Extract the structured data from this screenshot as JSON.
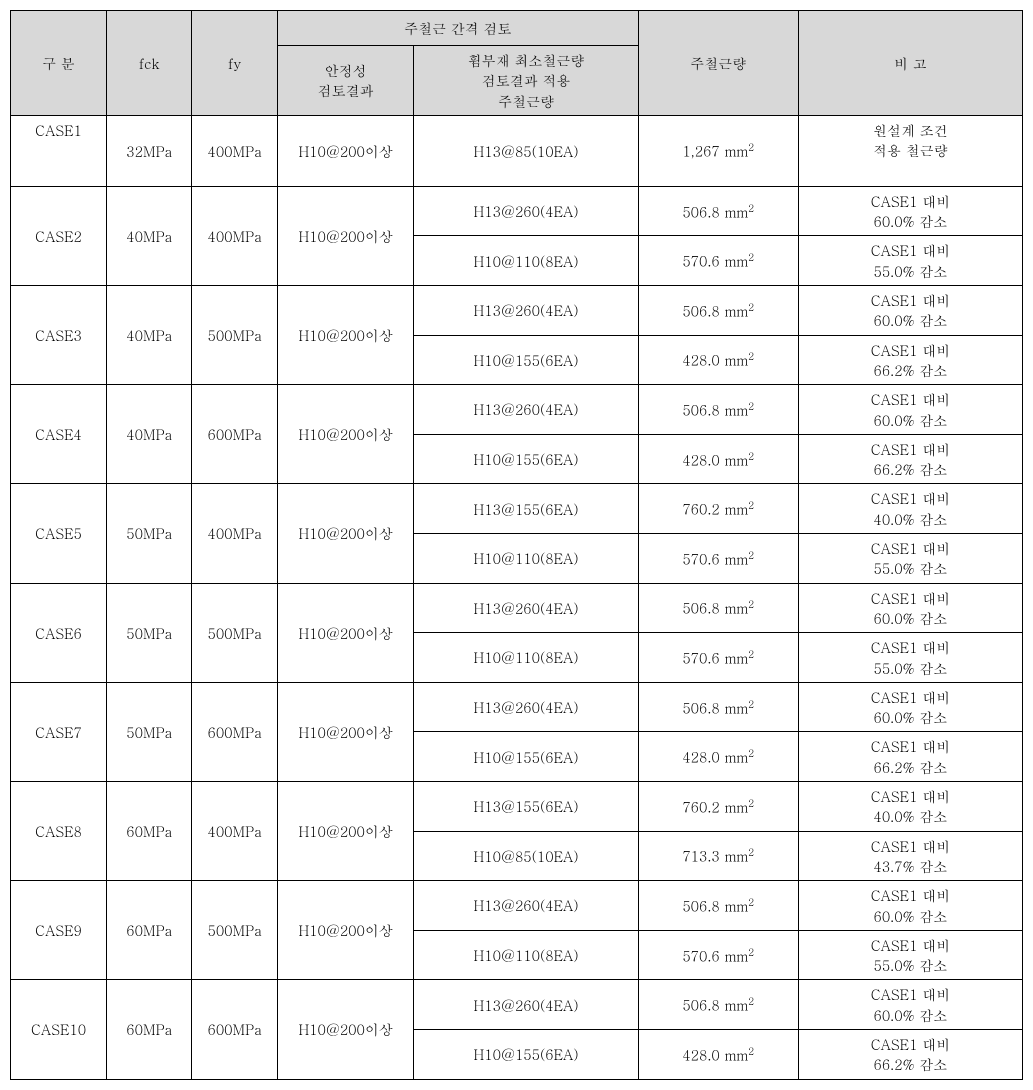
{
  "header": {
    "gubun": "구 분",
    "fck": "fck",
    "fy": "fy",
    "spacing_group": "주철근 간격 검토",
    "stability": "안정성\n검토결과",
    "flex_min": "휨부재 최소철근량\n검토결과 적용\n주철근량",
    "rebar_amount": "주철근량",
    "note": "비 고"
  },
  "h10_200": "H10@200이상",
  "rows": [
    {
      "case": "CASE1",
      "fck": "32MPa",
      "fy": "400MPa",
      "subs": [
        {
          "flex": "H13@85(10EA)",
          "rebar_val": "1,267",
          "rebar_unit": "mm",
          "note1": "원설계 조건",
          "note2": "적용 철근량"
        }
      ]
    },
    {
      "case": "CASE2",
      "fck": "40MPa",
      "fy": "400MPa",
      "subs": [
        {
          "flex": "H13@260(4EA)",
          "rebar_val": "506.8",
          "rebar_unit": "mm",
          "note1": "CASE1 대비",
          "note2": "60.0% 감소"
        },
        {
          "flex": "H10@110(8EA)",
          "rebar_val": "570.6",
          "rebar_unit": "mm",
          "note1": "CASE1 대비",
          "note2": "55.0% 감소"
        }
      ]
    },
    {
      "case": "CASE3",
      "fck": "40MPa",
      "fy": "500MPa",
      "subs": [
        {
          "flex": "H13@260(4EA)",
          "rebar_val": "506.8",
          "rebar_unit": "mm",
          "note1": "CASE1 대비",
          "note2": "60.0% 감소"
        },
        {
          "flex": "H10@155(6EA)",
          "rebar_val": "428.0",
          "rebar_unit": "mm",
          "note1": "CASE1 대비",
          "note2": "66.2% 감소"
        }
      ]
    },
    {
      "case": "CASE4",
      "fck": "40MPa",
      "fy": "600MPa",
      "subs": [
        {
          "flex": "H13@260(4EA)",
          "rebar_val": "506.8",
          "rebar_unit": "mm",
          "note1": "CASE1 대비",
          "note2": "60.0% 감소"
        },
        {
          "flex": "H10@155(6EA)",
          "rebar_val": "428.0",
          "rebar_unit": "mm",
          "note1": "CASE1 대비",
          "note2": "66.2% 감소"
        }
      ]
    },
    {
      "case": "CASE5",
      "fck": "50MPa",
      "fy": "400MPa",
      "subs": [
        {
          "flex": "H13@155(6EA)",
          "rebar_val": "760.2",
          "rebar_unit": "mm",
          "note1": "CASE1 대비",
          "note2": "40.0% 감소"
        },
        {
          "flex": "H10@110(8EA)",
          "rebar_val": "570.6",
          "rebar_unit": "mm",
          "note1": "CASE1 대비",
          "note2": "55.0% 감소"
        }
      ]
    },
    {
      "case": "CASE6",
      "fck": "50MPa",
      "fy": "500MPa",
      "subs": [
        {
          "flex": "H13@260(4EA)",
          "rebar_val": "506.8",
          "rebar_unit": "mm",
          "note1": "CASE1 대비",
          "note2": "60.0% 감소"
        },
        {
          "flex": "H10@110(8EA)",
          "rebar_val": "570.6",
          "rebar_unit": "mm",
          "note1": "CASE1 대비",
          "note2": "55.0% 감소"
        }
      ]
    },
    {
      "case": "CASE7",
      "fck": "50MPa",
      "fy": "600MPa",
      "subs": [
        {
          "flex": "H13@260(4EA)",
          "rebar_val": "506.8",
          "rebar_unit": "mm",
          "note1": "CASE1 대비",
          "note2": "60.0% 감소"
        },
        {
          "flex": "H10@155(6EA)",
          "rebar_val": "428.0",
          "rebar_unit": "mm",
          "note1": "CASE1 대비",
          "note2": "66.2% 감소"
        }
      ]
    },
    {
      "case": "CASE8",
      "fck": "60MPa",
      "fy": "400MPa",
      "subs": [
        {
          "flex": "H13@155(6EA)",
          "rebar_val": "760.2",
          "rebar_unit": "mm",
          "note1": "CASE1 대비",
          "note2": "40.0% 감소"
        },
        {
          "flex": "H10@85(10EA)",
          "rebar_val": "713.3",
          "rebar_unit": "mm",
          "note1": "CASE1 대비",
          "note2": "43.7% 감소"
        }
      ]
    },
    {
      "case": "CASE9",
      "fck": "60MPa",
      "fy": "500MPa",
      "subs": [
        {
          "flex": "H13@260(4EA)",
          "rebar_val": "506.8",
          "rebar_unit": "mm",
          "note1": "CASE1 대비",
          "note2": "60.0% 감소"
        },
        {
          "flex": "H10@110(8EA)",
          "rebar_val": "570.6",
          "rebar_unit": "mm",
          "note1": "CASE1 대비",
          "note2": "55.0% 감소"
        }
      ]
    },
    {
      "case": "CASE10",
      "fck": "60MPa",
      "fy": "600MPa",
      "subs": [
        {
          "flex": "H13@260(4EA)",
          "rebar_val": "506.8",
          "rebar_unit": "mm",
          "note1": "CASE1 대비",
          "note2": "60.0% 감소"
        },
        {
          "flex": "H10@155(6EA)",
          "rebar_val": "428.0",
          "rebar_unit": "mm",
          "note1": "CASE1 대비",
          "note2": "66.2% 감소"
        }
      ]
    }
  ]
}
